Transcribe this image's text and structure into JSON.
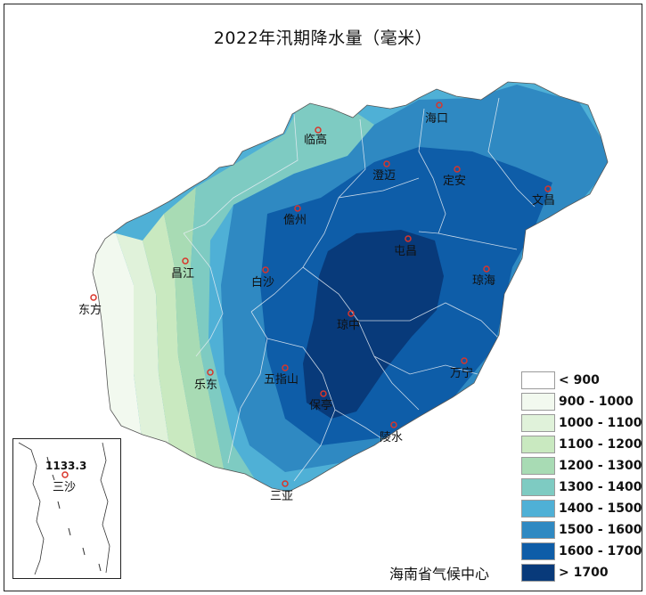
{
  "title": "2022年汛期降水量（毫米）",
  "source_label": "海南省气候中心",
  "cities": [
    {
      "name": "海口"
    },
    {
      "name": "临高"
    },
    {
      "name": "澄迈"
    },
    {
      "name": "定安"
    },
    {
      "name": "文昌"
    },
    {
      "name": "儋州"
    },
    {
      "name": "屯昌"
    },
    {
      "name": "昌江"
    },
    {
      "name": "白沙"
    },
    {
      "name": "琼海"
    },
    {
      "name": "东方"
    },
    {
      "name": "琼中"
    },
    {
      "name": "万宁"
    },
    {
      "name": "乐东"
    },
    {
      "name": "五指山"
    },
    {
      "name": "保亭"
    },
    {
      "name": "陵水"
    },
    {
      "name": "三亚"
    }
  ],
  "legend": [
    {
      "label": "< 900",
      "color": "#ffffff"
    },
    {
      "label": "900 - 1000",
      "color": "#f2f9ef"
    },
    {
      "label": "1000 - 1100",
      "color": "#e0f2da"
    },
    {
      "label": "1100 - 1200",
      "color": "#c9e9c0"
    },
    {
      "label": "1200 - 1300",
      "color": "#a8dbb4"
    },
    {
      "label": "1300 - 1400",
      "color": "#7ecbc2"
    },
    {
      "label": "1400 - 1500",
      "color": "#4fb0d6"
    },
    {
      "label": "1500 - 1600",
      "color": "#2f89c2"
    },
    {
      "label": "1600 - 1700",
      "color": "#0e5da8"
    },
    {
      "label": "> 1700",
      "color": "#083a7a"
    }
  ],
  "inset": {
    "value": "1133.3",
    "city": "三沙"
  }
}
